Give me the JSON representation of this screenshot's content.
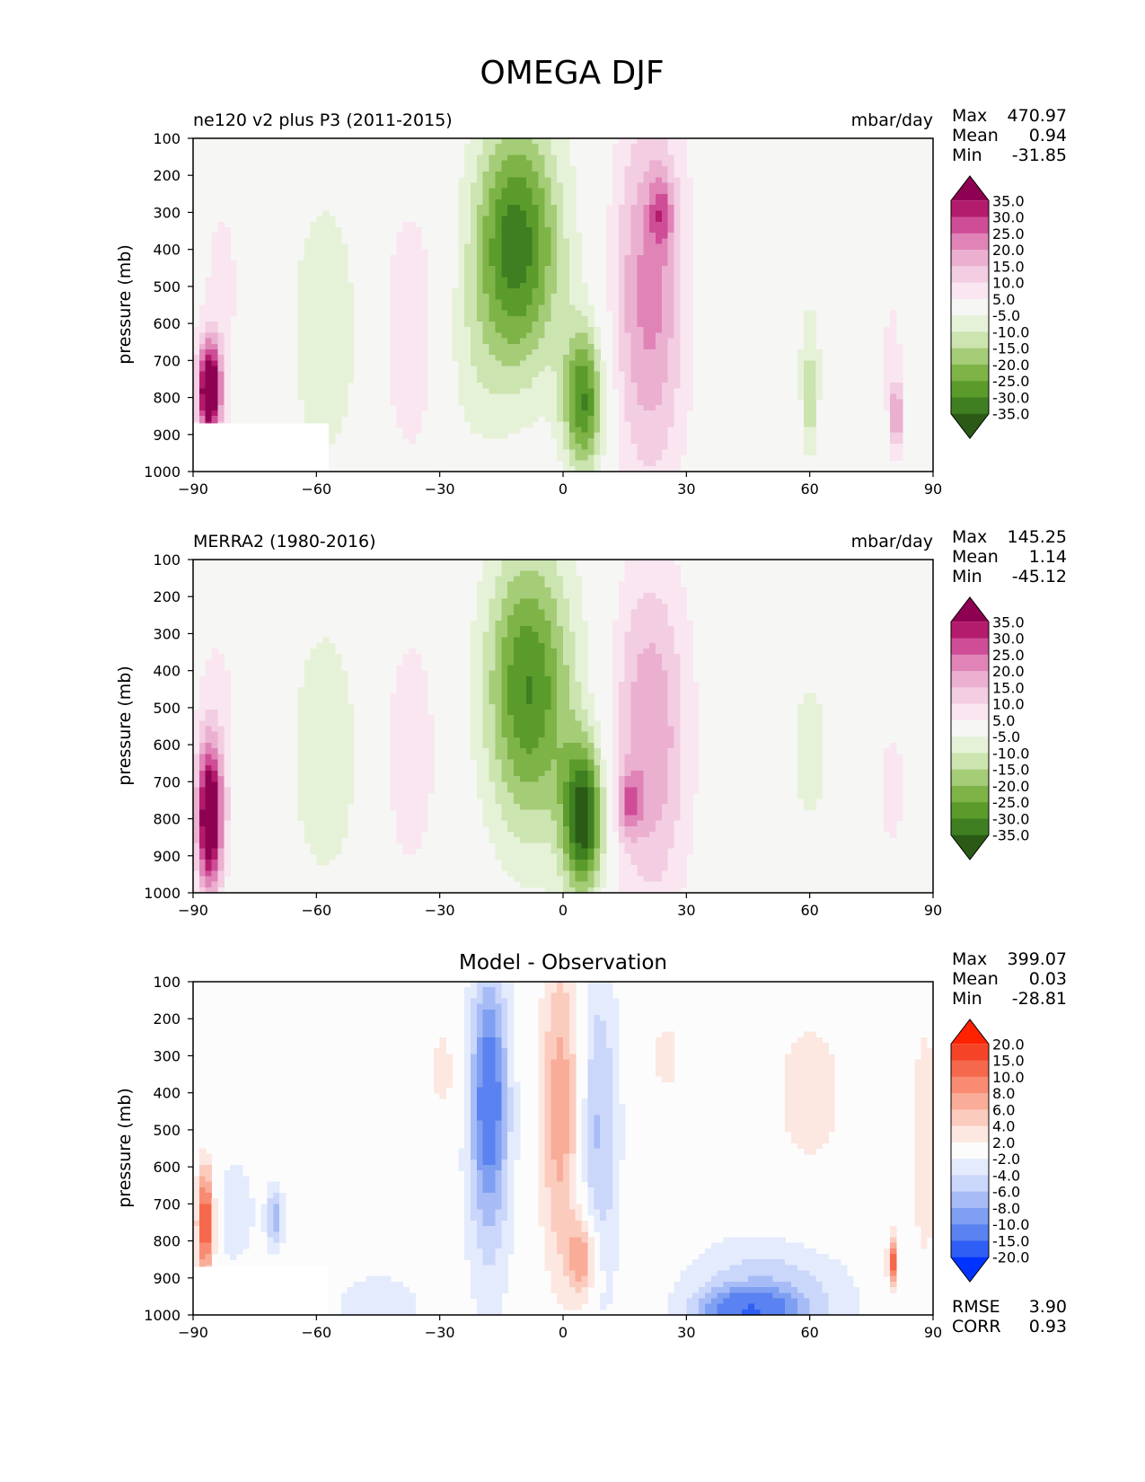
{
  "figure_title": "OMEGA DJF",
  "colors": {
    "pink_green": [
      "#2a5a16",
      "#3f7f21",
      "#5a9b2c",
      "#7eb348",
      "#a5cc77",
      "#cce4b0",
      "#e6f2d8",
      "#f6f6f4",
      "#f9e6f0",
      "#f3cde2",
      "#ebb0d0",
      "#e084b8",
      "#cf4d96",
      "#b31b6c",
      "#8e0152"
    ],
    "blue_red": [
      "#0033ff",
      "#2f5ef5",
      "#5a82f0",
      "#7f9ff2",
      "#a7bcf6",
      "#cad6fa",
      "#e4ebfd",
      "#fcfcfc",
      "#fde7e1",
      "#fbcbbd",
      "#f9ac98",
      "#f88b72",
      "#f6684b",
      "#f44326",
      "#ff2200"
    ]
  },
  "chart_data": [
    {
      "type": "heatmap",
      "id": "test",
      "title": "ne120 v2 plus P3 (2011-2015)",
      "units": "mbar/day",
      "xlabel": "",
      "ylabel": "pressure (mb)",
      "xlim": [
        -90,
        90
      ],
      "ylim": [
        1000,
        100
      ],
      "xticks": [
        "−90",
        "−60",
        "−30",
        "0",
        "30",
        "60",
        "90"
      ],
      "yticks": [
        "100",
        "200",
        "300",
        "400",
        "500",
        "600",
        "700",
        "800",
        "900",
        "1000"
      ],
      "stats": {
        "max_label": "Max",
        "max": "470.97",
        "mean_label": "Mean",
        "mean": "0.94",
        "min_label": "Min",
        "min": "-31.85"
      },
      "colorbar_levels": [
        "35.0",
        "30.0",
        "25.0",
        "20.0",
        "15.0",
        "10.0",
        "5.0",
        "-5.0",
        "-10.0",
        "-15.0",
        "-20.0",
        "-25.0",
        "-30.0",
        "-35.0"
      ],
      "colorscale": "pink_green",
      "features": [
        {
          "lat": -12,
          "p": 380,
          "dlat": 7,
          "dp": 230,
          "value": -24
        },
        {
          "lat": -9,
          "p": 420,
          "dlat": 9,
          "dp": 280,
          "value": -10
        },
        {
          "lat": 5,
          "p": 810,
          "dlat": 3.5,
          "dp": 140,
          "value": -30
        },
        {
          "lat": -22,
          "p": 730,
          "dlat": 6,
          "dp": 180,
          "value": -5
        },
        {
          "lat": 21,
          "p": 520,
          "dlat": 6.5,
          "dp": 370,
          "value": 22
        },
        {
          "lat": 24,
          "p": 300,
          "dlat": 2,
          "dp": 70,
          "value": 14
        },
        {
          "lat": -37,
          "p": 620,
          "dlat": 5,
          "dp": 260,
          "value": 10
        },
        {
          "lat": -83,
          "p": 500,
          "dlat": 5,
          "dp": 280,
          "value": 6
        },
        {
          "lat": -86,
          "p": 780,
          "dlat": 2,
          "dp": 90,
          "value": 48
        },
        {
          "lat": -58,
          "p": 620,
          "dlat": 6,
          "dp": 270,
          "value": -10
        },
        {
          "lat": 60,
          "p": 650,
          "dlat": 6,
          "dp": 260,
          "value": -5
        },
        {
          "lat": 60,
          "p": 800,
          "dlat": 1,
          "dp": 90,
          "value": -13
        },
        {
          "lat": 80,
          "p": 700,
          "dlat": 3,
          "dp": 230,
          "value": 6
        },
        {
          "lat": 81,
          "p": 850,
          "dlat": 0.8,
          "dp": 60,
          "value": 22
        }
      ],
      "mask_region": {
        "lat": [
          -90,
          -57
        ],
        "p": [
          870,
          1000
        ]
      }
    },
    {
      "type": "heatmap",
      "id": "reference",
      "title": "MERRA2 (1980-2016)",
      "units": "mbar/day",
      "xlabel": "",
      "ylabel": "pressure (mb)",
      "xlim": [
        -90,
        90
      ],
      "ylim": [
        1000,
        100
      ],
      "xticks": [
        "−90",
        "−60",
        "−30",
        "0",
        "30",
        "60",
        "90"
      ],
      "yticks": [
        "100",
        "200",
        "300",
        "400",
        "500",
        "600",
        "700",
        "800",
        "900",
        "1000"
      ],
      "stats": {
        "max_label": "Max",
        "max": "145.25",
        "mean_label": "Mean",
        "mean": "1.14",
        "min_label": "Min",
        "min": "-45.12"
      },
      "colorbar_levels": [
        "35.0",
        "30.0",
        "25.0",
        "20.0",
        "15.0",
        "10.0",
        "5.0",
        "-5.0",
        "-10.0",
        "-15.0",
        "-20.0",
        "-25.0",
        "-30.0",
        "-35.0"
      ],
      "colorscale": "pink_green",
      "features": [
        {
          "lat": -9,
          "p": 440,
          "dlat": 7,
          "dp": 260,
          "value": -23
        },
        {
          "lat": -5,
          "p": 500,
          "dlat": 10,
          "dp": 330,
          "value": -8
        },
        {
          "lat": 5,
          "p": 800,
          "dlat": 3.5,
          "dp": 140,
          "value": -38
        },
        {
          "lat": 21,
          "p": 580,
          "dlat": 7,
          "dp": 340,
          "value": 20
        },
        {
          "lat": 16,
          "p": 760,
          "dlat": 2,
          "dp": 60,
          "value": 16
        },
        {
          "lat": -37,
          "p": 620,
          "dlat": 5,
          "dp": 260,
          "value": 9
        },
        {
          "lat": -84,
          "p": 520,
          "dlat": 5,
          "dp": 270,
          "value": 6
        },
        {
          "lat": -86,
          "p": 800,
          "dlat": 2.2,
          "dp": 140,
          "value": 45
        },
        {
          "lat": -58,
          "p": 620,
          "dlat": 6,
          "dp": 260,
          "value": -10
        },
        {
          "lat": 60,
          "p": 620,
          "dlat": 6,
          "dp": 270,
          "value": -6
        },
        {
          "lat": 80,
          "p": 720,
          "dlat": 4,
          "dp": 220,
          "value": 6
        }
      ]
    },
    {
      "type": "heatmap",
      "id": "difference",
      "title": "Model - Observation",
      "units": "",
      "xlabel": "",
      "ylabel": "pressure (mb)",
      "xlim": [
        -90,
        90
      ],
      "ylim": [
        1000,
        100
      ],
      "xticks": [
        "−90",
        "−60",
        "−30",
        "0",
        "30",
        "60",
        "90"
      ],
      "yticks": [
        "100",
        "200",
        "300",
        "400",
        "500",
        "600",
        "700",
        "800",
        "900",
        "1000"
      ],
      "stats": {
        "max_label": "Max",
        "max": "399.07",
        "mean_label": "Mean",
        "mean": "0.03",
        "min_label": "Min",
        "min": "-28.81"
      },
      "colorbar_levels": [
        "20.0",
        "15.0",
        "10.0",
        "8.0",
        "6.0",
        "4.0",
        "2.0",
        "-2.0",
        "-4.0",
        "-6.0",
        "-8.0",
        "-10.0",
        "-15.0",
        "-20.0"
      ],
      "colorscale": "blue_red",
      "metrics": {
        "rmse_label": "RMSE",
        "rmse": "3.90",
        "corr_label": "CORR",
        "corr": "0.93"
      },
      "features": [
        {
          "lat": -18,
          "p": 400,
          "dlat": 3,
          "dp": 230,
          "value": -9
        },
        {
          "lat": -18,
          "p": 550,
          "dlat": 5,
          "dp": 380,
          "value": -4
        },
        {
          "lat": 0,
          "p": 450,
          "dlat": 4,
          "dp": 320,
          "value": 8
        },
        {
          "lat": 5,
          "p": 850,
          "dlat": 2.5,
          "dp": 80,
          "value": 9
        },
        {
          "lat": 8,
          "p": 500,
          "dlat": 4,
          "dp": 340,
          "value": -7
        },
        {
          "lat": -29,
          "p": 340,
          "dlat": 3,
          "dp": 110,
          "value": 3
        },
        {
          "lat": 25,
          "p": 300,
          "dlat": 3,
          "dp": 80,
          "value": 3
        },
        {
          "lat": -87,
          "p": 750,
          "dlat": 1.5,
          "dp": 110,
          "value": 14
        },
        {
          "lat": -80,
          "p": 720,
          "dlat": 5,
          "dp": 140,
          "value": -3
        },
        {
          "lat": -70,
          "p": 740,
          "dlat": 1.5,
          "dp": 60,
          "value": -7
        },
        {
          "lat": -45,
          "p": 970,
          "dlat": 8,
          "dp": 60,
          "value": -4
        },
        {
          "lat": 50,
          "p": 950,
          "dlat": 15,
          "dp": 120,
          "value": -6
        },
        {
          "lat": 45,
          "p": 990,
          "dlat": 8,
          "dp": 40,
          "value": -10
        },
        {
          "lat": 88,
          "p": 550,
          "dlat": 3,
          "dp": 330,
          "value": 3
        },
        {
          "lat": 80,
          "p": 860,
          "dlat": 0.8,
          "dp": 50,
          "value": 12
        },
        {
          "lat": 60,
          "p": 400,
          "dlat": 10,
          "dp": 250,
          "value": 2.5
        }
      ],
      "mask_region": {
        "lat": [
          -90,
          -57
        ],
        "p": [
          870,
          1000
        ]
      }
    }
  ]
}
